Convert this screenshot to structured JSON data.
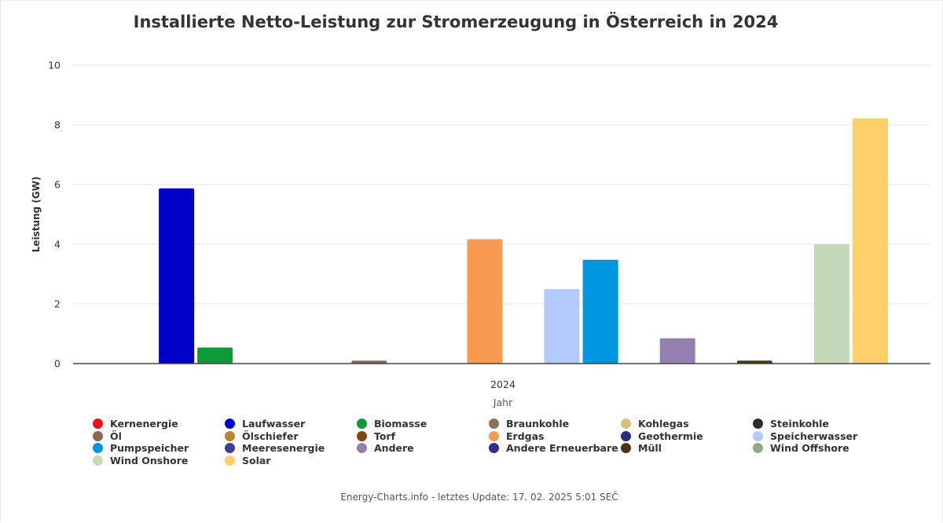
{
  "footer": "Energy-Charts.info - letztes Update: 17. 02. 2025 5:01 SEČ",
  "chart_data": {
    "type": "bar",
    "title": "Installierte Netto-Leistung zur Stromerzeugung in Österreich in 2024",
    "xlabel": "Jahr",
    "ylabel": "Leistung (GW)",
    "categories": [
      "2024"
    ],
    "ylim": [
      0,
      10
    ],
    "yticks": [
      0,
      2,
      4,
      6,
      8,
      10
    ],
    "grid": true,
    "legend_position": "bottom",
    "series": [
      {
        "name": "Kernenergie",
        "color": "#e8141b",
        "values": [
          0
        ]
      },
      {
        "name": "Laufwasser",
        "color": "#0000c8",
        "values": [
          5.87
        ]
      },
      {
        "name": "Biomasse",
        "color": "#0f9a3a",
        "values": [
          0.54
        ]
      },
      {
        "name": "Braunkohle",
        "color": "#8b7355",
        "values": [
          0
        ]
      },
      {
        "name": "Kohlegas",
        "color": "#d9c07e",
        "values": [
          0
        ]
      },
      {
        "name": "Steinkohle",
        "color": "#2b2b2b",
        "values": [
          0
        ]
      },
      {
        "name": "Öl",
        "color": "#856a54",
        "values": [
          0.1
        ]
      },
      {
        "name": "Ölschiefer",
        "color": "#b8862e",
        "values": [
          0
        ]
      },
      {
        "name": "Torf",
        "color": "#7a4a16",
        "values": [
          0
        ]
      },
      {
        "name": "Erdgas",
        "color": "#f89a50",
        "values": [
          4.17
        ]
      },
      {
        "name": "Geothermie",
        "color": "#2a2a7f",
        "values": [
          0
        ]
      },
      {
        "name": "Speicherwasser",
        "color": "#b3c8fc",
        "values": [
          2.5
        ]
      },
      {
        "name": "Pumpspeicher",
        "color": "#0096e0",
        "values": [
          3.48
        ]
      },
      {
        "name": "Meeresenergie",
        "color": "#3e3e8e",
        "values": [
          0
        ]
      },
      {
        "name": "Andere",
        "color": "#9480b0",
        "values": [
          0.85
        ]
      },
      {
        "name": "Andere Erneuerbare",
        "color": "#302d8f",
        "values": [
          0
        ]
      },
      {
        "name": "Müll",
        "color": "#4b3612",
        "values": [
          0.1
        ]
      },
      {
        "name": "Wind Offshore",
        "color": "#90a98c",
        "values": [
          0
        ]
      },
      {
        "name": "Wind Onshore",
        "color": "#c4d9b8",
        "values": [
          4.0
        ]
      },
      {
        "name": "Solar",
        "color": "#ffcf6a",
        "values": [
          8.22
        ]
      }
    ]
  }
}
